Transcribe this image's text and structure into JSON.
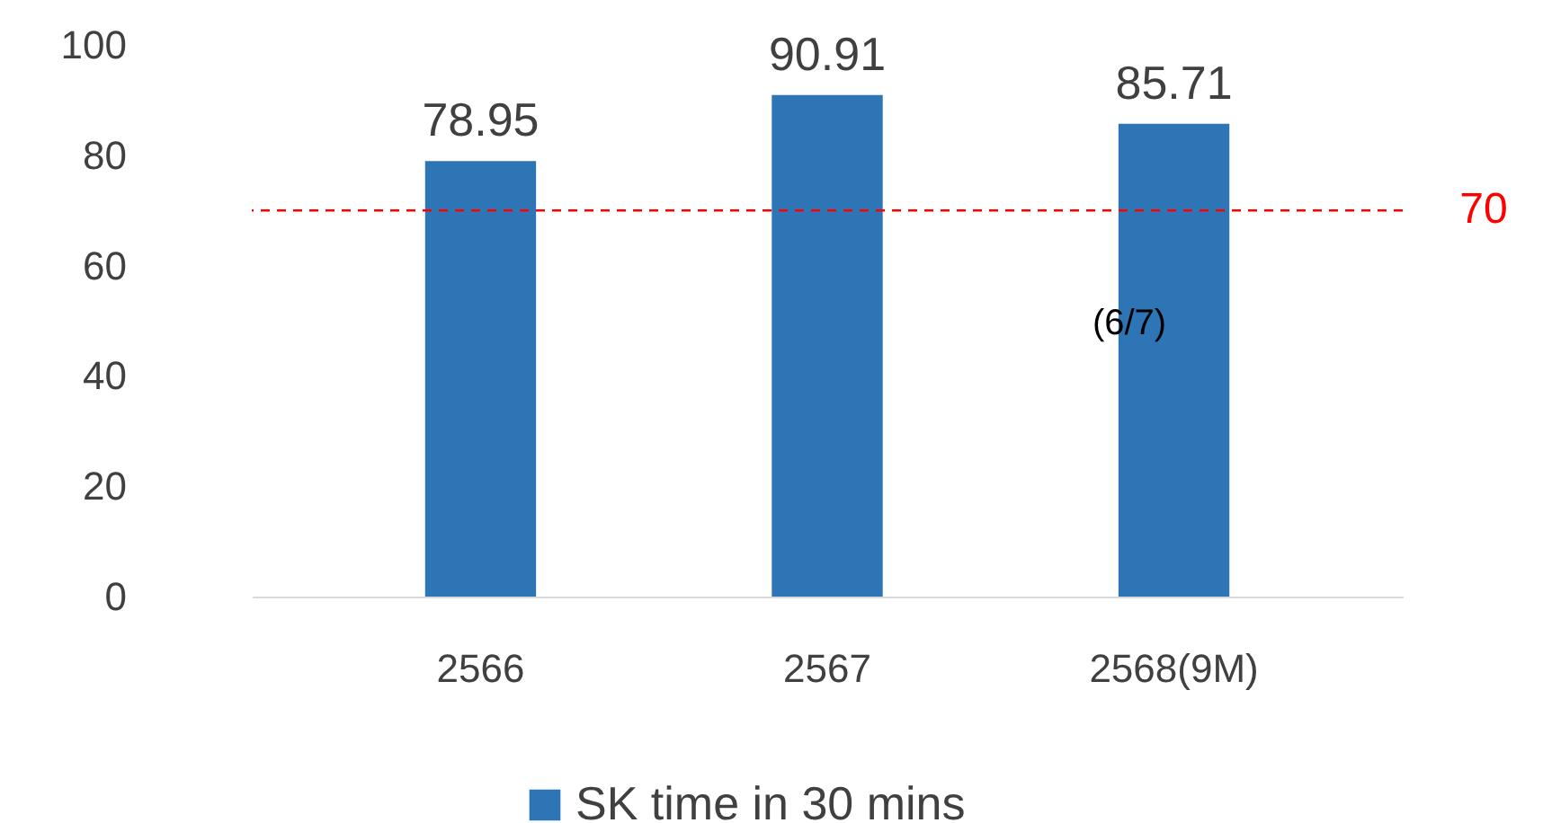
{
  "chart_data": {
    "type": "bar",
    "categories": [
      "2566",
      "2567",
      "2568(9M)"
    ],
    "series": [
      {
        "name": "SK time in 30 mins",
        "color": "#2e75b6",
        "values": [
          78.95,
          90.91,
          85.71
        ]
      }
    ],
    "ylim": [
      0,
      100
    ],
    "yticks": [
      0,
      20,
      40,
      60,
      80,
      100
    ],
    "data_labels": true,
    "grid": false,
    "legend": "bottom",
    "ref_lines": [
      {
        "axis": "y",
        "value": 70,
        "label": "70",
        "color": "#ff0000",
        "line_style": "dashed"
      }
    ],
    "annotations": [
      "(6/7)"
    ]
  }
}
